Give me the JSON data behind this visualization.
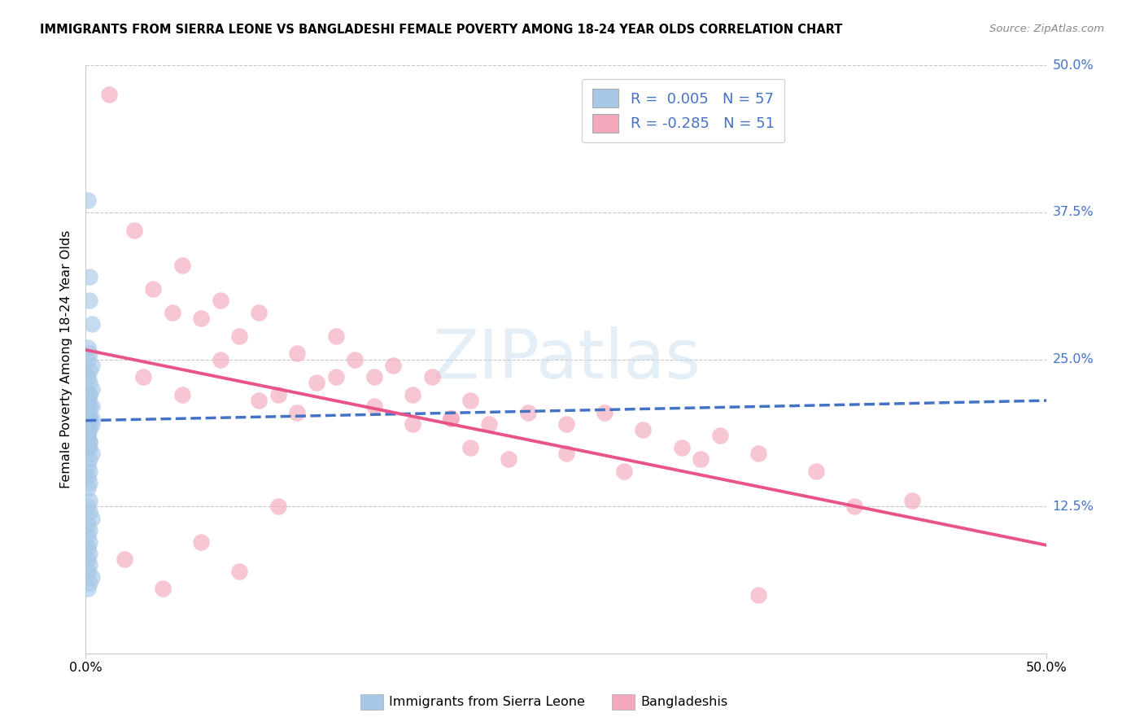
{
  "title": "IMMIGRANTS FROM SIERRA LEONE VS BANGLADESHI FEMALE POVERTY AMONG 18-24 YEAR OLDS CORRELATION CHART",
  "source": "Source: ZipAtlas.com",
  "ylabel": "Female Poverty Among 18-24 Year Olds",
  "blue_color": "#a8c8e8",
  "pink_color": "#f4a8bc",
  "blue_line_color": "#4472c4",
  "pink_line_color": "#e8538a",
  "legend_text_color": "#4472c4",
  "watermark_text": "ZIPatlas",
  "legend_label_1": "Immigrants from Sierra Leone",
  "legend_label_2": "Bangladeshis",
  "legend_r1": "R =  0.005   N = 57",
  "legend_r2": "R = -0.285   N = 51",
  "xlim": [
    0.0,
    0.5
  ],
  "ylim": [
    0.0,
    0.5
  ],
  "sl_x": [
    0.001,
    0.002,
    0.002,
    0.003,
    0.001,
    0.002,
    0.001,
    0.003,
    0.002,
    0.001,
    0.002,
    0.003,
    0.002,
    0.001,
    0.002,
    0.001,
    0.002,
    0.003,
    0.002,
    0.001,
    0.002,
    0.002,
    0.003,
    0.001,
    0.002,
    0.001,
    0.003,
    0.002,
    0.001,
    0.002,
    0.001,
    0.002,
    0.001,
    0.002,
    0.003,
    0.002,
    0.001,
    0.002,
    0.001,
    0.002,
    0.001,
    0.002,
    0.001,
    0.002,
    0.003,
    0.001,
    0.002,
    0.001,
    0.002,
    0.001,
    0.002,
    0.001,
    0.002,
    0.001,
    0.003,
    0.002,
    0.001
  ],
  "sl_y": [
    0.385,
    0.32,
    0.3,
    0.28,
    0.26,
    0.255,
    0.25,
    0.245,
    0.24,
    0.235,
    0.23,
    0.225,
    0.22,
    0.215,
    0.21,
    0.205,
    0.2,
    0.195,
    0.19,
    0.185,
    0.22,
    0.21,
    0.2,
    0.19,
    0.18,
    0.175,
    0.21,
    0.2,
    0.19,
    0.18,
    0.2,
    0.195,
    0.185,
    0.175,
    0.17,
    0.165,
    0.16,
    0.155,
    0.15,
    0.145,
    0.14,
    0.13,
    0.125,
    0.12,
    0.115,
    0.11,
    0.105,
    0.1,
    0.095,
    0.09,
    0.085,
    0.08,
    0.075,
    0.07,
    0.065,
    0.06,
    0.055
  ],
  "bd_x": [
    0.012,
    0.025,
    0.035,
    0.045,
    0.05,
    0.06,
    0.07,
    0.08,
    0.09,
    0.1,
    0.11,
    0.12,
    0.13,
    0.14,
    0.15,
    0.16,
    0.17,
    0.18,
    0.19,
    0.2,
    0.03,
    0.05,
    0.07,
    0.09,
    0.11,
    0.13,
    0.15,
    0.17,
    0.19,
    0.21,
    0.23,
    0.25,
    0.27,
    0.29,
    0.31,
    0.33,
    0.38,
    0.2,
    0.22,
    0.25,
    0.28,
    0.32,
    0.35,
    0.4,
    0.43,
    0.02,
    0.04,
    0.06,
    0.08,
    0.1,
    0.35
  ],
  "bd_y": [
    0.475,
    0.36,
    0.31,
    0.29,
    0.33,
    0.285,
    0.3,
    0.27,
    0.29,
    0.22,
    0.255,
    0.23,
    0.27,
    0.25,
    0.235,
    0.245,
    0.22,
    0.235,
    0.2,
    0.215,
    0.235,
    0.22,
    0.25,
    0.215,
    0.205,
    0.235,
    0.21,
    0.195,
    0.2,
    0.195,
    0.205,
    0.195,
    0.205,
    0.19,
    0.175,
    0.185,
    0.155,
    0.175,
    0.165,
    0.17,
    0.155,
    0.165,
    0.17,
    0.125,
    0.13,
    0.08,
    0.055,
    0.095,
    0.07,
    0.125,
    0.05
  ],
  "sl_trend_x": [
    0.0,
    0.5
  ],
  "sl_trend_y": [
    0.198,
    0.215
  ],
  "bd_trend_x": [
    0.0,
    0.5
  ],
  "bd_trend_y": [
    0.258,
    0.092
  ]
}
